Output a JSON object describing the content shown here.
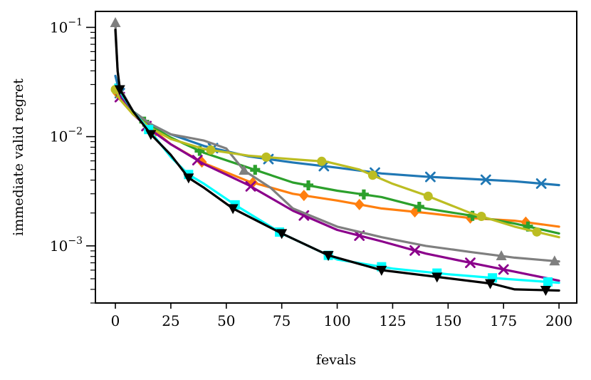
{
  "chart_data": {
    "type": "line",
    "xlabel": "fevals",
    "ylabel": "immediate valid regret",
    "xlim": [
      -9,
      208
    ],
    "ylim": [
      0.0003,
      0.14
    ],
    "yscale": "log",
    "xticks": [
      0,
      25,
      50,
      75,
      100,
      125,
      150,
      175,
      200
    ],
    "xtick_labels": [
      "0",
      "25",
      "50",
      "75",
      "100",
      "125",
      "150",
      "175",
      "200"
    ],
    "yticks": [
      0.001,
      0.01,
      0.1
    ],
    "ytick_labels": [
      {
        "base": "10",
        "exp": "−3"
      },
      {
        "base": "10",
        "exp": "−2"
      },
      {
        "base": "10",
        "exp": "−1"
      }
    ],
    "grid": false,
    "legend": "none",
    "series": [
      {
        "color": "#1f77b4",
        "marker": "x",
        "x": [
          0,
          2,
          8,
          16,
          25,
          40,
          60,
          80,
          100,
          120,
          140,
          160,
          180,
          200
        ],
        "y": [
          0.036,
          0.025,
          0.017,
          0.013,
          0.0105,
          0.0082,
          0.0066,
          0.0058,
          0.0052,
          0.0046,
          0.0043,
          0.0041,
          0.0039,
          0.0036
        ],
        "marker_x": [
          2,
          44,
          69,
          94,
          117,
          142,
          167,
          192
        ]
      },
      {
        "color": "#ff7f0e",
        "marker": "D",
        "x": [
          0,
          2,
          8,
          16,
          25,
          40,
          60,
          80,
          100,
          120,
          140,
          160,
          180,
          200
        ],
        "y": [
          0.028,
          0.022,
          0.016,
          0.012,
          0.0085,
          0.0057,
          0.0039,
          0.003,
          0.0026,
          0.0022,
          0.002,
          0.0018,
          0.0017,
          0.0015
        ],
        "marker_x": [
          1,
          18,
          39,
          62,
          85,
          110,
          135,
          160,
          185
        ]
      },
      {
        "color": "#2ca02c",
        "marker": "P",
        "x": [
          0,
          2,
          8,
          16,
          25,
          40,
          60,
          80,
          100,
          120,
          140,
          160,
          180,
          200
        ],
        "y": [
          0.029,
          0.023,
          0.016,
          0.0125,
          0.0098,
          0.0071,
          0.0052,
          0.0038,
          0.0032,
          0.0028,
          0.0022,
          0.0019,
          0.0016,
          0.0013
        ],
        "marker_x": [
          1,
          13,
          38,
          63,
          87,
          112,
          137,
          161,
          186
        ]
      },
      {
        "color": "#8b008b",
        "marker": "x",
        "x": [
          0,
          2,
          8,
          16,
          25,
          40,
          60,
          80,
          100,
          120,
          140,
          160,
          180,
          200
        ],
        "y": [
          0.03,
          0.023,
          0.016,
          0.0115,
          0.0085,
          0.0056,
          0.0036,
          0.0021,
          0.0014,
          0.0011,
          0.00085,
          0.0007,
          0.00058,
          0.00048
        ],
        "marker_x": [
          2,
          14,
          37,
          61,
          85,
          110,
          135,
          160,
          175
        ]
      },
      {
        "color": "#7f7f7f",
        "marker": "^",
        "x": [
          0,
          1,
          2,
          8,
          16,
          25,
          40,
          50,
          58,
          70,
          80,
          100,
          120,
          140,
          160,
          180,
          200
        ],
        "y": [
          0.11,
          0.04,
          0.028,
          0.017,
          0.013,
          0.0105,
          0.0092,
          0.0078,
          0.0049,
          0.0034,
          0.0022,
          0.0015,
          0.0012,
          0.001,
          0.00088,
          0.00078,
          0.00072
        ],
        "marker_x": [
          0,
          58,
          174,
          198
        ]
      },
      {
        "color": "#bcbd22",
        "marker": "o",
        "x": [
          0,
          2,
          8,
          16,
          25,
          40,
          60,
          80,
          95,
          110,
          125,
          140,
          160,
          180,
          200
        ],
        "y": [
          0.027,
          0.022,
          0.016,
          0.012,
          0.0095,
          0.0077,
          0.0067,
          0.0062,
          0.0059,
          0.005,
          0.0037,
          0.0029,
          0.002,
          0.0015,
          0.0012
        ],
        "marker_x": [
          0,
          43,
          68,
          93,
          116,
          141,
          165,
          190
        ]
      },
      {
        "color": "#00ffff",
        "marker": "s",
        "x": [
          0,
          1,
          2,
          8,
          16,
          25,
          33,
          40,
          55,
          75,
          100,
          125,
          150,
          175,
          200
        ],
        "y": [
          0.03,
          0.028,
          0.026,
          0.017,
          0.011,
          0.0065,
          0.0045,
          0.0037,
          0.0023,
          0.0013,
          0.00075,
          0.00062,
          0.00055,
          0.0005,
          0.00046
        ],
        "marker_x": [
          15,
          33,
          54,
          74,
          96,
          120,
          145,
          170,
          195
        ]
      },
      {
        "color": "#000000",
        "marker": "v",
        "x": [
          0,
          1,
          2,
          8,
          16,
          25,
          33,
          40,
          53,
          75,
          96,
          120,
          145,
          170,
          180,
          200
        ],
        "y": [
          0.095,
          0.04,
          0.027,
          0.017,
          0.0105,
          0.0068,
          0.0042,
          0.0034,
          0.0022,
          0.0013,
          0.00082,
          0.0006,
          0.00052,
          0.00045,
          0.0004,
          0.00039
        ],
        "marker_x": [
          2,
          16,
          33,
          53,
          75,
          96,
          120,
          145,
          169,
          194
        ]
      }
    ]
  }
}
